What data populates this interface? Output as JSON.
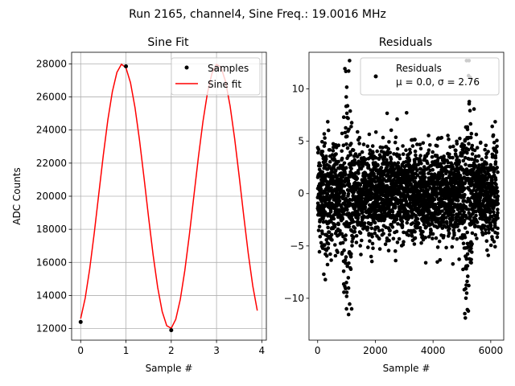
{
  "figure": {
    "suptitle": "Run 2165, channel4, Sine Freq.: 19.0016 MHz"
  },
  "chart_data": [
    {
      "type": "line",
      "title": "Sine Fit",
      "xlabel": "Sample #",
      "ylabel": "ADC Counts",
      "xlim": [
        -0.2,
        4.1
      ],
      "ylim": [
        11300,
        28700
      ],
      "xticks": [
        0,
        1,
        2,
        3,
        4
      ],
      "yticks": [
        12000,
        14000,
        16000,
        18000,
        20000,
        22000,
        24000,
        26000,
        28000
      ],
      "grid": true,
      "legend_position": "top-right",
      "series": [
        {
          "name": "Samples",
          "kind": "scatter",
          "color": "#000000",
          "x": [
            0,
            1,
            2,
            3
          ],
          "y": [
            12400,
            27850,
            11900,
            27700
          ]
        },
        {
          "name": "Sine fit",
          "kind": "line",
          "color": "#ff0000",
          "model": {
            "offset": 19990,
            "amplitude": 8000,
            "period_samples": 2.105,
            "peak_sample": 0.92
          },
          "x_range": [
            0,
            3.9
          ],
          "points": 40
        }
      ]
    },
    {
      "type": "scatter",
      "title": "Residuals",
      "xlabel": "Sample #",
      "ylabel": "",
      "xlim": [
        -300,
        6450
      ],
      "ylim": [
        -14,
        13.5
      ],
      "xticks": [
        0,
        2000,
        4000,
        6000
      ],
      "yticks": [
        -10,
        -5,
        0,
        5,
        10
      ],
      "grid": false,
      "legend_position": "top-right",
      "series": [
        {
          "name": "Residuals",
          "legend_line2": "μ = 0.0, σ = 2.76",
          "color": "#000000",
          "count": 6250,
          "mean": 0.0,
          "std": 2.76,
          "x_range": [
            0,
            6249
          ],
          "bursts": [
            {
              "center": 1050,
              "width": 120,
              "scale": 2.6
            },
            {
              "center": 5200,
              "width": 140,
              "scale": 2.6
            },
            {
              "center": 300,
              "width": 200,
              "scale": 1.3
            }
          ]
        }
      ]
    }
  ]
}
